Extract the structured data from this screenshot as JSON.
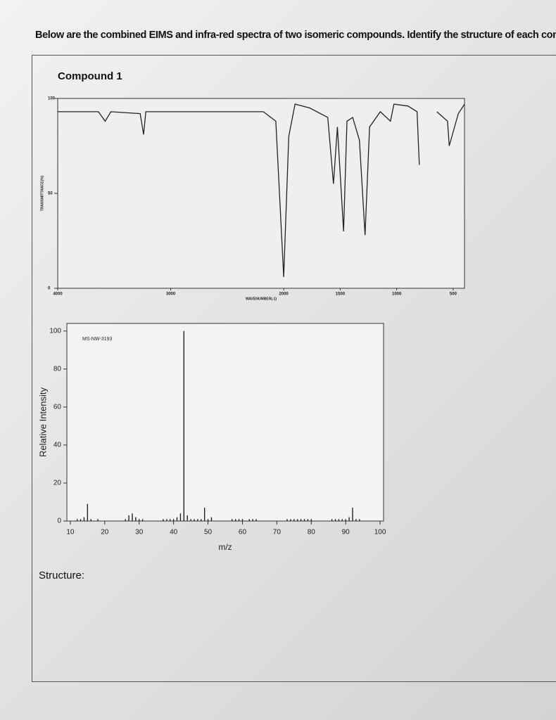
{
  "instructions": "Below are the combined EIMS and infra-red spectra of two isomeric compounds.  Identify the structure of each compour",
  "compound_title": "Compound 1",
  "structure_label": "Structure:",
  "chart_data": [
    {
      "type": "line",
      "xlabel": "WAVENUMBER(-1)",
      "ylabel": "TRANSMITTANCE(%)",
      "color": "#222222",
      "x": [
        4000,
        3640,
        3580,
        3530,
        3270,
        3240,
        3220,
        2180,
        2070,
        2000,
        1955,
        1900,
        1770,
        1610,
        1560,
        1525,
        1470,
        1440,
        1390,
        1330,
        1280,
        1240,
        1145,
        1055,
        1025,
        900,
        820,
        800,
        760,
        645,
        550,
        535,
        455,
        400
      ],
      "values": [
        93,
        93,
        88,
        93,
        92,
        81,
        93,
        93,
        88,
        6,
        80,
        97,
        95,
        90,
        55,
        85,
        30,
        88,
        90,
        78,
        28,
        85,
        93,
        88,
        97,
        96,
        93,
        65,
        null,
        93,
        88,
        75,
        92,
        97
      ],
      "xlim": [
        4000,
        400
      ],
      "ylim": [
        0,
        100
      ],
      "xticks": [
        4000,
        3000,
        2000,
        1500,
        1000,
        500
      ],
      "yticks": [
        0,
        50,
        100
      ]
    },
    {
      "type": "bar",
      "xlabel": "m/z",
      "ylabel": "Relative Intensity",
      "annotation": "MS-NW-3193",
      "color": "#222222",
      "x": [
        12,
        13,
        14,
        15,
        16,
        18,
        26,
        27,
        28,
        29,
        30,
        31,
        37,
        38,
        39,
        40,
        41,
        42,
        43,
        44,
        45,
        46,
        47,
        48,
        49,
        50,
        51,
        57,
        58,
        59,
        60,
        62,
        63,
        64,
        73,
        74,
        75,
        76,
        77,
        78,
        79,
        80,
        86,
        87,
        88,
        89,
        90,
        91,
        92,
        93,
        94
      ],
      "values": [
        1,
        1,
        2,
        9,
        1,
        1,
        1,
        3,
        4,
        2,
        1,
        1,
        1,
        1,
        1,
        1,
        2,
        4,
        100,
        3,
        1,
        1,
        1,
        1,
        7,
        1,
        2,
        1,
        1,
        1,
        1,
        1,
        1,
        1,
        1,
        1,
        1,
        1,
        1,
        1,
        1,
        1,
        1,
        1,
        1,
        1,
        1,
        2,
        7,
        1,
        1
      ],
      "xlim": [
        9,
        101
      ],
      "ylim": [
        0,
        104
      ],
      "xticks": [
        10,
        20,
        30,
        40,
        50,
        60,
        70,
        80,
        90,
        100
      ],
      "yticks": [
        0,
        20,
        40,
        60,
        80,
        100
      ]
    }
  ]
}
